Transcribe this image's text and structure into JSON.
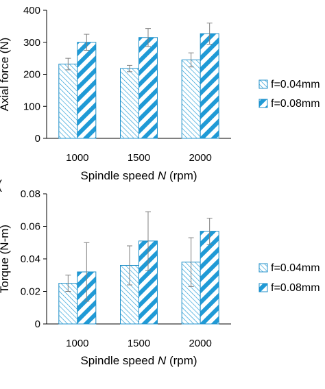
{
  "chart_data": [
    {
      "type": "bar",
      "xlabel_prefix": "Spindle speed ",
      "xlabel_var": "N",
      "xlabel_suffix": " (rpm)",
      "ylabel": "Axial force (N)",
      "categories": [
        "1000",
        "1500",
        "2000"
      ],
      "ylim": [
        0,
        400
      ],
      "yticks": [
        "0",
        "100",
        "200",
        "300",
        "400"
      ],
      "yticks_values": [
        0,
        100,
        200,
        300,
        400
      ],
      "grid": false,
      "legend_position": "right",
      "series": [
        {
          "name": "f=0.04mm",
          "values": [
            232,
            218,
            245
          ],
          "errors": [
            18,
            10,
            22
          ],
          "pattern": "fine-hatch"
        },
        {
          "name": "f=0.08mm",
          "values": [
            300,
            315,
            327
          ],
          "errors": [
            25,
            28,
            33
          ],
          "pattern": "wide-stripe"
        }
      ]
    },
    {
      "type": "bar",
      "xlabel_prefix": "Spindle speed ",
      "xlabel_var": "N",
      "xlabel_suffix": " (rpm)",
      "ylabel": "Torque (N-m)",
      "categories": [
        "1000",
        "1500",
        "2000"
      ],
      "ylim": [
        0,
        0.08
      ],
      "yticks": [
        "0",
        "0.02",
        "0.04",
        "0.06",
        "0.08"
      ],
      "yticks_values": [
        0,
        0.02,
        0.04,
        0.06,
        0.08
      ],
      "grid": false,
      "legend_position": "right",
      "series": [
        {
          "name": "f=0.04mm",
          "values": [
            0.025,
            0.036,
            0.038
          ],
          "errors": [
            0.005,
            0.012,
            0.015
          ],
          "pattern": "fine-hatch"
        },
        {
          "name": "f=0.08mm",
          "values": [
            0.032,
            0.051,
            0.057
          ],
          "errors": [
            0.018,
            0.018,
            0.008
          ],
          "pattern": "wide-stripe"
        }
      ]
    }
  ],
  "colors": {
    "bar_edge": "#1f8fc8",
    "pattern": "#1f9ad6",
    "axis": "#000000",
    "error": "#7f7f7f"
  },
  "panel_marker": "("
}
